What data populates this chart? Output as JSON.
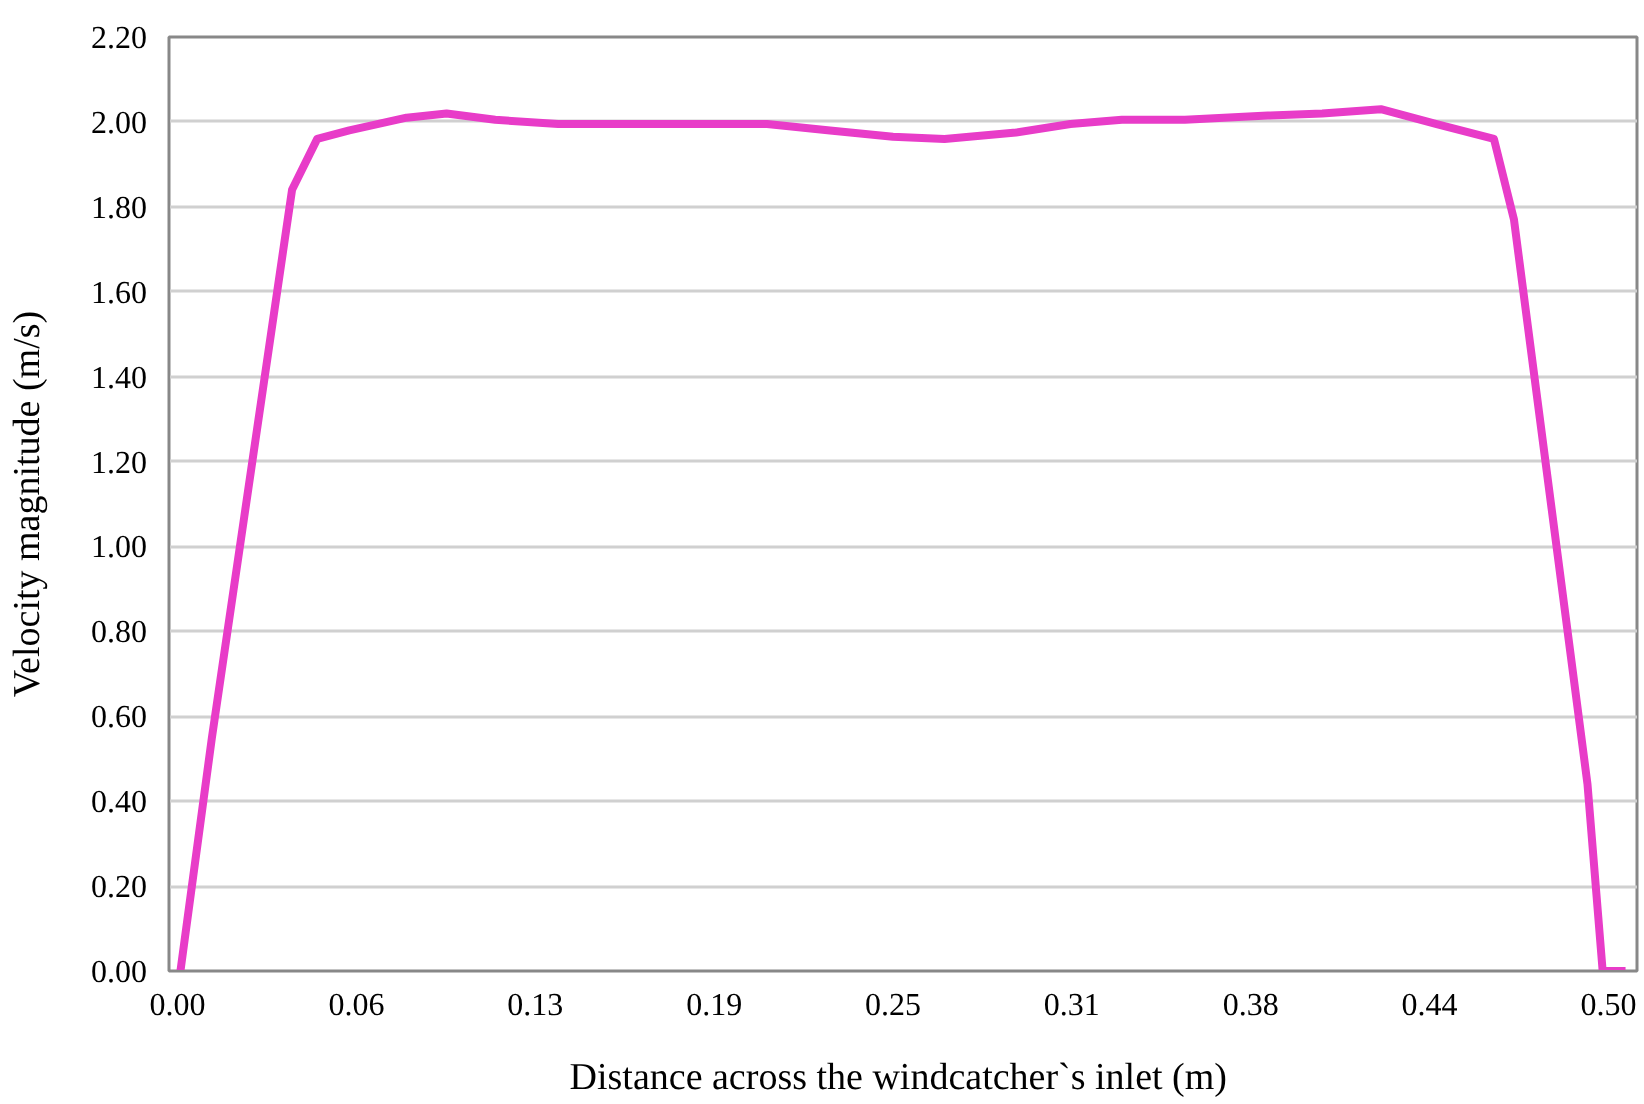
{
  "chart_data": {
    "type": "line",
    "xlabel": "Distance across the windcatcher`s  inlet (m)",
    "ylabel": "Velocity magnitude (m/s)",
    "x": [
      0.001,
      0.012,
      0.0233,
      0.04,
      0.0488,
      0.06,
      0.08,
      0.094,
      0.111,
      0.133,
      0.162,
      0.206,
      0.228,
      0.25,
      0.268,
      0.293,
      0.312,
      0.33,
      0.352,
      0.381,
      0.4,
      0.4205,
      0.44,
      0.46,
      0.467,
      0.4927,
      0.498,
      0.506
    ],
    "series": [
      {
        "color": "#e83cc8",
        "values": [
          0,
          0.55,
          1.07,
          1.84,
          1.96,
          1.98,
          2.01,
          2.02,
          2.005,
          1.995,
          1.995,
          1.995,
          1.98,
          1.965,
          1.96,
          1.975,
          1.995,
          2.005,
          2.005,
          2.015,
          2.02,
          2.03,
          1.995,
          1.96,
          1.77,
          0.44,
          0,
          0
        ]
      }
    ],
    "xlim": [
      -0.003,
      0.51
    ],
    "ylim": [
      0,
      2.2
    ],
    "xticks": [
      {
        "value": 0,
        "label": "0.00"
      },
      {
        "value": 0.0625,
        "label": "0.06"
      },
      {
        "value": 0.125,
        "label": "0.13"
      },
      {
        "value": 0.1875,
        "label": "0.19"
      },
      {
        "value": 0.25,
        "label": "0.25"
      },
      {
        "value": 0.3125,
        "label": "0.31"
      },
      {
        "value": 0.375,
        "label": "0.38"
      },
      {
        "value": 0.4375,
        "label": "0.44"
      },
      {
        "value": 0.5,
        "label": "0.50"
      }
    ],
    "yticks": [
      {
        "value": 0,
        "label": "0.00"
      },
      {
        "value": 0.2,
        "label": "0.20"
      },
      {
        "value": 0.4,
        "label": "0.40"
      },
      {
        "value": 0.6,
        "label": "0.60"
      },
      {
        "value": 0.8,
        "label": "0.80"
      },
      {
        "value": 1.0,
        "label": "1.00"
      },
      {
        "value": 1.2,
        "label": "1.20"
      },
      {
        "value": 1.4,
        "label": "1.40"
      },
      {
        "value": 1.6,
        "label": "1.60"
      },
      {
        "value": 1.8,
        "label": "1.80"
      },
      {
        "value": 2.0,
        "label": "2.00"
      },
      {
        "value": 2.2,
        "label": "2.20"
      }
    ],
    "grid": "y",
    "marker": "none",
    "line_style": "solid"
  }
}
